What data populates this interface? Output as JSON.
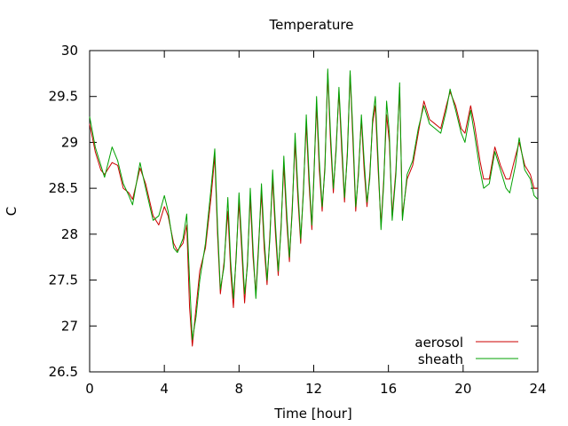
{
  "chart_data": {
    "type": "line",
    "title": "Temperature",
    "xlabel": "Time [hour]",
    "ylabel": "C",
    "xlim": [
      0,
      24
    ],
    "ylim": [
      26.5,
      30
    ],
    "x_ticks": [
      0,
      4,
      8,
      12,
      16,
      20,
      24
    ],
    "y_ticks": [
      26.5,
      27,
      27.5,
      28,
      28.5,
      29,
      29.5,
      30
    ],
    "x_tick_labels": [
      "0",
      "4",
      "8",
      "12",
      "16",
      "20",
      "24"
    ],
    "y_tick_labels": [
      "26.5",
      "27",
      "27.5",
      "28",
      "28.5",
      "29",
      "29.5",
      "30"
    ],
    "grid": false,
    "legend_position": "bottom-right",
    "series": [
      {
        "name": "aerosol",
        "color": "#cc0000",
        "points": [
          [
            0.0,
            29.2
          ],
          [
            0.3,
            28.9
          ],
          [
            0.6,
            28.7
          ],
          [
            0.8,
            28.65
          ],
          [
            1.2,
            28.78
          ],
          [
            1.5,
            28.75
          ],
          [
            1.8,
            28.5
          ],
          [
            2.1,
            28.45
          ],
          [
            2.3,
            28.38
          ],
          [
            2.7,
            28.72
          ],
          [
            3.0,
            28.55
          ],
          [
            3.4,
            28.2
          ],
          [
            3.7,
            28.1
          ],
          [
            4.0,
            28.3
          ],
          [
            4.2,
            28.2
          ],
          [
            4.5,
            27.9
          ],
          [
            4.7,
            27.82
          ],
          [
            5.0,
            27.9
          ],
          [
            5.2,
            28.1
          ],
          [
            5.35,
            27.2
          ],
          [
            5.5,
            26.78
          ],
          [
            5.7,
            27.2
          ],
          [
            5.9,
            27.6
          ],
          [
            6.2,
            27.85
          ],
          [
            6.5,
            28.4
          ],
          [
            6.7,
            28.85
          ],
          [
            6.85,
            28.0
          ],
          [
            7.0,
            27.35
          ],
          [
            7.2,
            27.7
          ],
          [
            7.4,
            28.25
          ],
          [
            7.55,
            27.6
          ],
          [
            7.7,
            27.2
          ],
          [
            7.85,
            27.8
          ],
          [
            8.0,
            28.35
          ],
          [
            8.15,
            27.8
          ],
          [
            8.3,
            27.25
          ],
          [
            8.45,
            27.7
          ],
          [
            8.6,
            28.4
          ],
          [
            8.75,
            27.75
          ],
          [
            8.9,
            27.35
          ],
          [
            9.05,
            27.9
          ],
          [
            9.2,
            28.45
          ],
          [
            9.35,
            27.85
          ],
          [
            9.5,
            27.45
          ],
          [
            9.65,
            28.0
          ],
          [
            9.8,
            28.6
          ],
          [
            9.95,
            28.0
          ],
          [
            10.1,
            27.55
          ],
          [
            10.25,
            28.1
          ],
          [
            10.4,
            28.75
          ],
          [
            10.55,
            28.15
          ],
          [
            10.7,
            27.7
          ],
          [
            10.85,
            28.3
          ],
          [
            11.0,
            29.0
          ],
          [
            11.15,
            28.4
          ],
          [
            11.3,
            27.9
          ],
          [
            11.45,
            28.5
          ],
          [
            11.6,
            29.2
          ],
          [
            11.75,
            28.55
          ],
          [
            11.9,
            28.05
          ],
          [
            12.0,
            28.6
          ],
          [
            12.15,
            29.4
          ],
          [
            12.3,
            28.7
          ],
          [
            12.45,
            28.25
          ],
          [
            12.6,
            28.75
          ],
          [
            12.75,
            29.75
          ],
          [
            12.9,
            29.0
          ],
          [
            13.05,
            28.45
          ],
          [
            13.2,
            28.95
          ],
          [
            13.35,
            29.55
          ],
          [
            13.5,
            28.9
          ],
          [
            13.65,
            28.35
          ],
          [
            13.8,
            28.9
          ],
          [
            13.95,
            29.75
          ],
          [
            14.1,
            29.0
          ],
          [
            14.25,
            28.25
          ],
          [
            14.4,
            28.7
          ],
          [
            14.55,
            29.25
          ],
          [
            14.7,
            28.7
          ],
          [
            14.85,
            28.3
          ],
          [
            15.0,
            28.65
          ],
          [
            15.15,
            29.2
          ],
          [
            15.3,
            29.4
          ],
          [
            15.45,
            28.7
          ],
          [
            15.6,
            28.1
          ],
          [
            15.75,
            28.6
          ],
          [
            15.9,
            29.3
          ],
          [
            16.05,
            29.0
          ],
          [
            16.2,
            28.2
          ],
          [
            16.4,
            28.7
          ],
          [
            16.6,
            29.6
          ],
          [
            16.75,
            28.2
          ],
          [
            17.0,
            28.6
          ],
          [
            17.3,
            28.75
          ],
          [
            17.6,
            29.1
          ],
          [
            17.9,
            29.45
          ],
          [
            18.2,
            29.25
          ],
          [
            18.5,
            29.2
          ],
          [
            18.8,
            29.15
          ],
          [
            19.1,
            29.4
          ],
          [
            19.3,
            29.55
          ],
          [
            19.6,
            29.4
          ],
          [
            19.9,
            29.15
          ],
          [
            20.1,
            29.1
          ],
          [
            20.4,
            29.4
          ],
          [
            20.6,
            29.2
          ],
          [
            20.9,
            28.8
          ],
          [
            21.1,
            28.6
          ],
          [
            21.4,
            28.6
          ],
          [
            21.7,
            28.95
          ],
          [
            22.0,
            28.75
          ],
          [
            22.3,
            28.6
          ],
          [
            22.5,
            28.6
          ],
          [
            22.8,
            28.85
          ],
          [
            23.0,
            29.0
          ],
          [
            23.3,
            28.75
          ],
          [
            23.6,
            28.65
          ],
          [
            23.8,
            28.5
          ],
          [
            24.0,
            28.5
          ]
        ]
      },
      {
        "name": "sheath",
        "color": "#00a000",
        "points": [
          [
            0.0,
            29.28
          ],
          [
            0.3,
            28.95
          ],
          [
            0.6,
            28.75
          ],
          [
            0.8,
            28.62
          ],
          [
            1.2,
            28.95
          ],
          [
            1.5,
            28.8
          ],
          [
            1.8,
            28.55
          ],
          [
            2.1,
            28.42
          ],
          [
            2.3,
            28.32
          ],
          [
            2.7,
            28.78
          ],
          [
            3.0,
            28.5
          ],
          [
            3.4,
            28.15
          ],
          [
            3.7,
            28.2
          ],
          [
            4.0,
            28.42
          ],
          [
            4.2,
            28.25
          ],
          [
            4.5,
            27.85
          ],
          [
            4.7,
            27.8
          ],
          [
            5.0,
            27.95
          ],
          [
            5.2,
            28.22
          ],
          [
            5.35,
            27.5
          ],
          [
            5.5,
            26.85
          ],
          [
            5.7,
            27.1
          ],
          [
            5.9,
            27.5
          ],
          [
            6.2,
            27.9
          ],
          [
            6.5,
            28.5
          ],
          [
            6.7,
            28.93
          ],
          [
            6.85,
            28.1
          ],
          [
            7.0,
            27.4
          ],
          [
            7.2,
            27.65
          ],
          [
            7.4,
            28.4
          ],
          [
            7.55,
            27.7
          ],
          [
            7.7,
            27.3
          ],
          [
            7.85,
            27.75
          ],
          [
            8.0,
            28.45
          ],
          [
            8.15,
            27.9
          ],
          [
            8.3,
            27.35
          ],
          [
            8.45,
            27.65
          ],
          [
            8.6,
            28.5
          ],
          [
            8.75,
            27.85
          ],
          [
            8.9,
            27.3
          ],
          [
            9.05,
            27.85
          ],
          [
            9.2,
            28.55
          ],
          [
            9.35,
            27.95
          ],
          [
            9.5,
            27.5
          ],
          [
            9.65,
            27.95
          ],
          [
            9.8,
            28.7
          ],
          [
            9.95,
            28.1
          ],
          [
            10.1,
            27.6
          ],
          [
            10.25,
            28.05
          ],
          [
            10.4,
            28.85
          ],
          [
            10.55,
            28.25
          ],
          [
            10.7,
            27.75
          ],
          [
            10.85,
            28.25
          ],
          [
            11.0,
            29.1
          ],
          [
            11.15,
            28.5
          ],
          [
            11.3,
            27.95
          ],
          [
            11.45,
            28.45
          ],
          [
            11.6,
            29.3
          ],
          [
            11.75,
            28.65
          ],
          [
            11.9,
            28.1
          ],
          [
            12.0,
            28.55
          ],
          [
            12.15,
            29.5
          ],
          [
            12.3,
            28.8
          ],
          [
            12.45,
            28.3
          ],
          [
            12.6,
            28.7
          ],
          [
            12.75,
            29.8
          ],
          [
            12.9,
            29.1
          ],
          [
            13.05,
            28.5
          ],
          [
            13.2,
            28.9
          ],
          [
            13.35,
            29.6
          ],
          [
            13.5,
            29.0
          ],
          [
            13.65,
            28.4
          ],
          [
            13.8,
            28.85
          ],
          [
            13.95,
            29.78
          ],
          [
            14.1,
            29.1
          ],
          [
            14.25,
            28.3
          ],
          [
            14.4,
            28.65
          ],
          [
            14.55,
            29.3
          ],
          [
            14.7,
            28.8
          ],
          [
            14.85,
            28.35
          ],
          [
            15.0,
            28.6
          ],
          [
            15.15,
            29.25
          ],
          [
            15.3,
            29.5
          ],
          [
            15.45,
            28.8
          ],
          [
            15.6,
            28.05
          ],
          [
            15.75,
            28.55
          ],
          [
            15.9,
            29.45
          ],
          [
            16.05,
            29.1
          ],
          [
            16.2,
            28.15
          ],
          [
            16.4,
            28.65
          ],
          [
            16.6,
            29.65
          ],
          [
            16.75,
            28.15
          ],
          [
            17.0,
            28.65
          ],
          [
            17.3,
            28.8
          ],
          [
            17.6,
            29.15
          ],
          [
            17.9,
            29.4
          ],
          [
            18.2,
            29.2
          ],
          [
            18.5,
            29.15
          ],
          [
            18.8,
            29.1
          ],
          [
            19.1,
            29.35
          ],
          [
            19.3,
            29.58
          ],
          [
            19.6,
            29.35
          ],
          [
            19.9,
            29.1
          ],
          [
            20.1,
            29.0
          ],
          [
            20.4,
            29.35
          ],
          [
            20.6,
            29.1
          ],
          [
            20.9,
            28.7
          ],
          [
            21.1,
            28.5
          ],
          [
            21.4,
            28.55
          ],
          [
            21.7,
            28.9
          ],
          [
            22.0,
            28.7
          ],
          [
            22.3,
            28.5
          ],
          [
            22.5,
            28.45
          ],
          [
            22.8,
            28.75
          ],
          [
            23.0,
            29.05
          ],
          [
            23.3,
            28.7
          ],
          [
            23.6,
            28.6
          ],
          [
            23.8,
            28.42
          ],
          [
            24.0,
            28.38
          ]
        ]
      }
    ]
  }
}
